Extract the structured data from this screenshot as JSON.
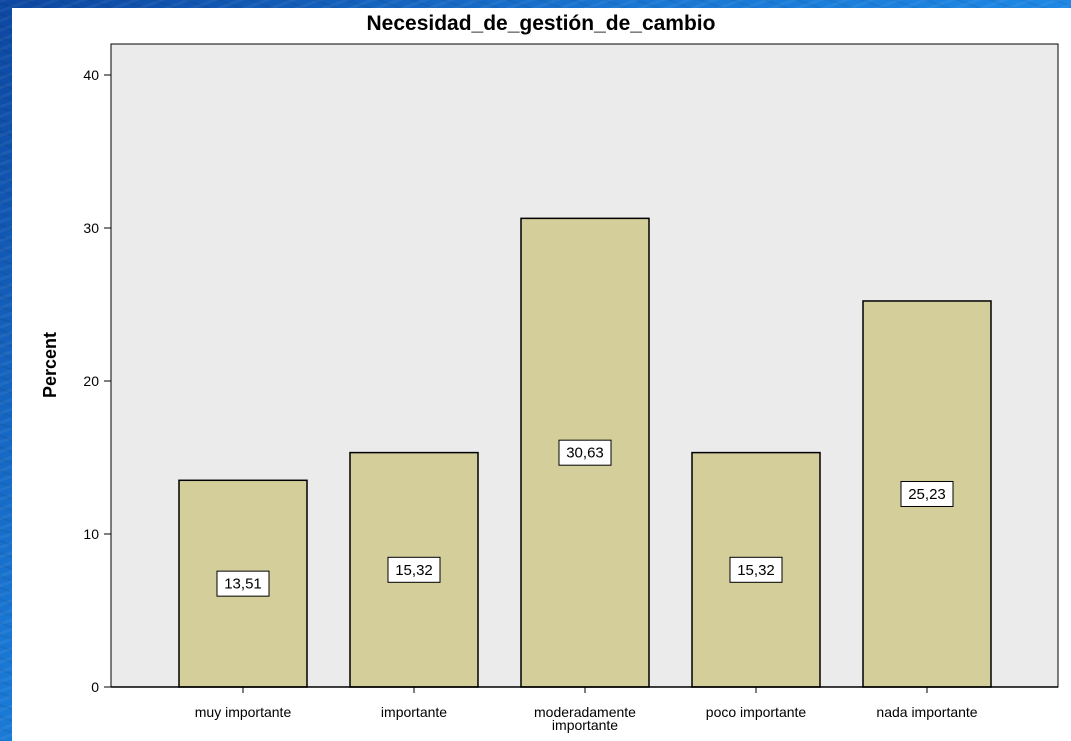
{
  "chart_data": {
    "type": "bar",
    "title": "Necesidad_de_gestión_de_cambio",
    "xlabel": "",
    "ylabel": "Percent",
    "ylim": [
      0,
      42
    ],
    "yticks": [
      0,
      10,
      20,
      30,
      40
    ],
    "grid": false,
    "categories": [
      [
        "muy importante"
      ],
      [
        "importante"
      ],
      [
        "moderadamente",
        "importante"
      ],
      [
        "poco importante"
      ],
      [
        "nada importante"
      ]
    ],
    "values": [
      13.51,
      15.32,
      30.63,
      15.32,
      25.23
    ],
    "data_labels": [
      "13,51",
      "15,32",
      "30,63",
      "15,32",
      "25,23"
    ],
    "colors": {
      "plot_background": "#ebebeb",
      "bar_fill": "#d3ce9a",
      "bar_stroke": "#000000"
    }
  }
}
